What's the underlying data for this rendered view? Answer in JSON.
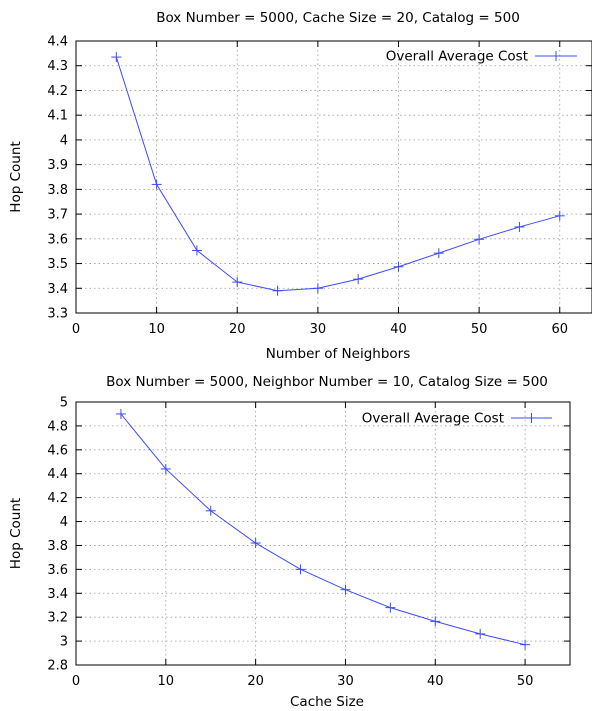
{
  "chart_data": [
    {
      "type": "line",
      "title": "Box Number = 5000, Cache Size = 20, Catalog = 500",
      "xlabel": "Number of Neighbors",
      "ylabel": "Hop Count",
      "xlim": [
        0,
        64
      ],
      "ylim": [
        3.3,
        4.4
      ],
      "xticks": [
        0,
        10,
        20,
        30,
        40,
        50,
        60
      ],
      "yticks": [
        3.3,
        3.4,
        3.5,
        3.6,
        3.7,
        3.8,
        3.9,
        4.0,
        4.1,
        4.2,
        4.3,
        4.4
      ],
      "xtick_labels": [
        "0",
        "10",
        "20",
        "30",
        "40",
        "50",
        "60"
      ],
      "ytick_labels": [
        "3.3",
        "3.4",
        "3.5",
        "3.6",
        "3.7",
        "3.8",
        "3.9",
        "4",
        "4.1",
        "4.2",
        "4.3",
        "4.4"
      ],
      "grid": true,
      "legend": "top-right",
      "series": [
        {
          "name": "Overall Average Cost",
          "color": "#3b4bff",
          "marker": "plus",
          "x": [
            5,
            10,
            15,
            20,
            25,
            30,
            35,
            40,
            45,
            50,
            55,
            60
          ],
          "y": [
            4.335,
            3.82,
            3.553,
            3.425,
            3.39,
            3.4,
            3.437,
            3.487,
            3.542,
            3.598,
            3.648,
            3.693
          ]
        }
      ]
    },
    {
      "type": "line",
      "title": "Box Number = 5000, Neighbor Number = 10, Catalog Size = 500",
      "xlabel": "Cache Size",
      "ylabel": "Hop Count",
      "xlim": [
        0,
        55
      ],
      "ylim": [
        2.8,
        5.0
      ],
      "xticks": [
        0,
        10,
        20,
        30,
        40,
        50
      ],
      "yticks": [
        2.8,
        3.0,
        3.2,
        3.4,
        3.6,
        3.8,
        4.0,
        4.2,
        4.4,
        4.6,
        4.8,
        5.0
      ],
      "xtick_labels": [
        "0",
        "10",
        "20",
        "30",
        "40",
        "50"
      ],
      "ytick_labels": [
        "2.8",
        "3",
        "3.2",
        "3.4",
        "3.6",
        "3.8",
        "4",
        "4.2",
        "4.4",
        "4.6",
        "4.8",
        "5"
      ],
      "grid": true,
      "legend": "top-right",
      "series": [
        {
          "name": "Overall Average Cost",
          "color": "#3b4bff",
          "marker": "plus",
          "x": [
            5,
            10,
            15,
            20,
            25,
            30,
            35,
            40,
            45,
            50
          ],
          "y": [
            4.9,
            4.44,
            4.09,
            3.82,
            3.6,
            3.43,
            3.28,
            3.165,
            3.06,
            2.97
          ]
        }
      ]
    }
  ]
}
